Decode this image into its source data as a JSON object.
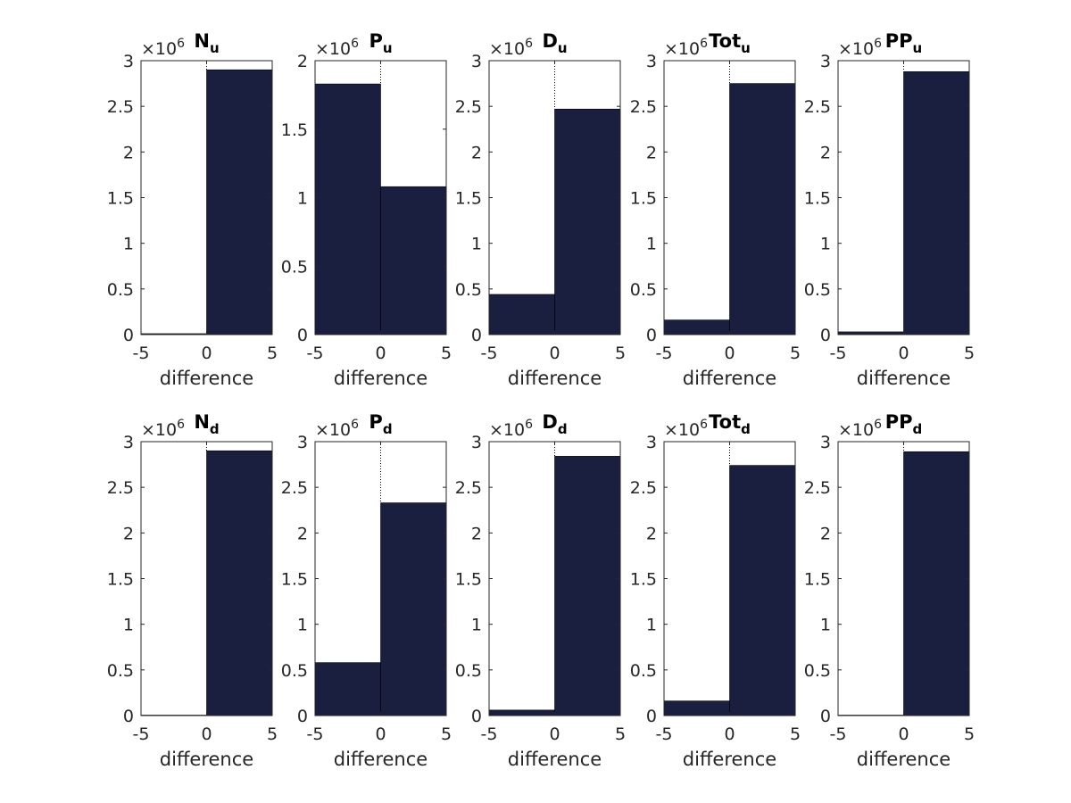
{
  "figure": {
    "bar_color": "#1a1f40",
    "axis_color": "#262626",
    "background": "#ffffff"
  },
  "chart_data": [
    {
      "type": "bar",
      "panel": "p11",
      "title_main": "N",
      "title_sub": "u",
      "xlabel": "difference",
      "x_ticks": [
        "-5",
        "0",
        "5"
      ],
      "xlim": [
        -5,
        5
      ],
      "ylim": [
        0,
        3
      ],
      "y_ticks": [
        "0",
        "0.5",
        "1",
        "1.5",
        "2",
        "2.5",
        "3"
      ],
      "y_multiplier": "10",
      "y_exponent": "6",
      "bins": [
        [
          -5,
          0
        ],
        [
          0,
          5
        ]
      ],
      "values": [
        0.01,
        2.9
      ]
    },
    {
      "type": "bar",
      "panel": "p12",
      "title_main": "P",
      "title_sub": "u",
      "xlabel": "difference",
      "x_ticks": [
        "-5",
        "0",
        "5"
      ],
      "xlim": [
        -5,
        5
      ],
      "ylim": [
        0,
        2
      ],
      "y_ticks": [
        "0",
        "0.5",
        "1",
        "1.5",
        "2"
      ],
      "y_multiplier": "10",
      "y_exponent": "6",
      "bins": [
        [
          -5,
          0
        ],
        [
          0,
          5
        ]
      ],
      "values": [
        1.83,
        1.08
      ]
    },
    {
      "type": "bar",
      "panel": "p13",
      "title_main": "D",
      "title_sub": "u",
      "xlabel": "difference",
      "x_ticks": [
        "-5",
        "0",
        "5"
      ],
      "xlim": [
        -5,
        5
      ],
      "ylim": [
        0,
        3
      ],
      "y_ticks": [
        "0",
        "0.5",
        "1",
        "1.5",
        "2",
        "2.5",
        "3"
      ],
      "y_multiplier": "10",
      "y_exponent": "6",
      "bins": [
        [
          -5,
          0
        ],
        [
          0,
          5
        ]
      ],
      "values": [
        0.44,
        2.47
      ]
    },
    {
      "type": "bar",
      "panel": "p14",
      "title_main": "Tot",
      "title_sub": "u",
      "xlabel": "difference",
      "x_ticks": [
        "-5",
        "0",
        "5"
      ],
      "xlim": [
        -5,
        5
      ],
      "ylim": [
        0,
        3
      ],
      "y_ticks": [
        "0",
        "0.5",
        "1",
        "1.5",
        "2",
        "2.5",
        "3"
      ],
      "y_multiplier": "10",
      "y_exponent": "6",
      "bins": [
        [
          -5,
          0
        ],
        [
          0,
          5
        ]
      ],
      "values": [
        0.16,
        2.75
      ]
    },
    {
      "type": "bar",
      "panel": "p15",
      "title_main": "PP",
      "title_sub": "u",
      "xlabel": "difference",
      "x_ticks": [
        "-5",
        "0",
        "5"
      ],
      "xlim": [
        -5,
        5
      ],
      "ylim": [
        0,
        3
      ],
      "y_ticks": [
        "0",
        "0.5",
        "1",
        "1.5",
        "2",
        "2.5",
        "3"
      ],
      "y_multiplier": "10",
      "y_exponent": "6",
      "bins": [
        [
          -5,
          0
        ],
        [
          0,
          5
        ]
      ],
      "values": [
        0.03,
        2.88
      ]
    },
    {
      "type": "bar",
      "panel": "p21",
      "title_main": "N",
      "title_sub": "d",
      "xlabel": "difference",
      "x_ticks": [
        "-5",
        "0",
        "5"
      ],
      "xlim": [
        -5,
        5
      ],
      "ylim": [
        0,
        3
      ],
      "y_ticks": [
        "0",
        "0.5",
        "1",
        "1.5",
        "2",
        "2.5",
        "3"
      ],
      "y_multiplier": "10",
      "y_exponent": "6",
      "bins": [
        [
          -5,
          0
        ],
        [
          0,
          5
        ]
      ],
      "values": [
        0.005,
        2.9
      ]
    },
    {
      "type": "bar",
      "panel": "p22",
      "title_main": "P",
      "title_sub": "d",
      "xlabel": "difference",
      "x_ticks": [
        "-5",
        "0",
        "5"
      ],
      "xlim": [
        -5,
        5
      ],
      "ylim": [
        0,
        3
      ],
      "y_ticks": [
        "0",
        "0.5",
        "1",
        "1.5",
        "2",
        "2.5",
        "3"
      ],
      "y_multiplier": "10",
      "y_exponent": "6",
      "bins": [
        [
          -5,
          0
        ],
        [
          0,
          5
        ]
      ],
      "values": [
        0.58,
        2.33
      ]
    },
    {
      "type": "bar",
      "panel": "p23",
      "title_main": "D",
      "title_sub": "d",
      "xlabel": "difference",
      "x_ticks": [
        "-5",
        "0",
        "5"
      ],
      "xlim": [
        -5,
        5
      ],
      "ylim": [
        0,
        3
      ],
      "y_ticks": [
        "0",
        "0.5",
        "1",
        "1.5",
        "2",
        "2.5",
        "3"
      ],
      "y_multiplier": "10",
      "y_exponent": "6",
      "bins": [
        [
          -5,
          0
        ],
        [
          0,
          5
        ]
      ],
      "values": [
        0.06,
        2.84
      ]
    },
    {
      "type": "bar",
      "panel": "p24",
      "title_main": "Tot",
      "title_sub": "d",
      "xlabel": "difference",
      "x_ticks": [
        "-5",
        "0",
        "5"
      ],
      "xlim": [
        -5,
        5
      ],
      "ylim": [
        0,
        3
      ],
      "y_ticks": [
        "0",
        "0.5",
        "1",
        "1.5",
        "2",
        "2.5",
        "3"
      ],
      "y_multiplier": "10",
      "y_exponent": "6",
      "bins": [
        [
          -5,
          0
        ],
        [
          0,
          5
        ]
      ],
      "values": [
        0.16,
        2.74
      ]
    },
    {
      "type": "bar",
      "panel": "p25",
      "title_main": "PP",
      "title_sub": "d",
      "xlabel": "difference",
      "x_ticks": [
        "-5",
        "0",
        "5"
      ],
      "xlim": [
        -5,
        5
      ],
      "ylim": [
        0,
        3
      ],
      "y_ticks": [
        "0",
        "0.5",
        "1",
        "1.5",
        "2",
        "2.5",
        "3"
      ],
      "y_multiplier": "10",
      "y_exponent": "6",
      "bins": [
        [
          -5,
          0
        ],
        [
          0,
          5
        ]
      ],
      "values": [
        0.005,
        2.89
      ]
    }
  ]
}
